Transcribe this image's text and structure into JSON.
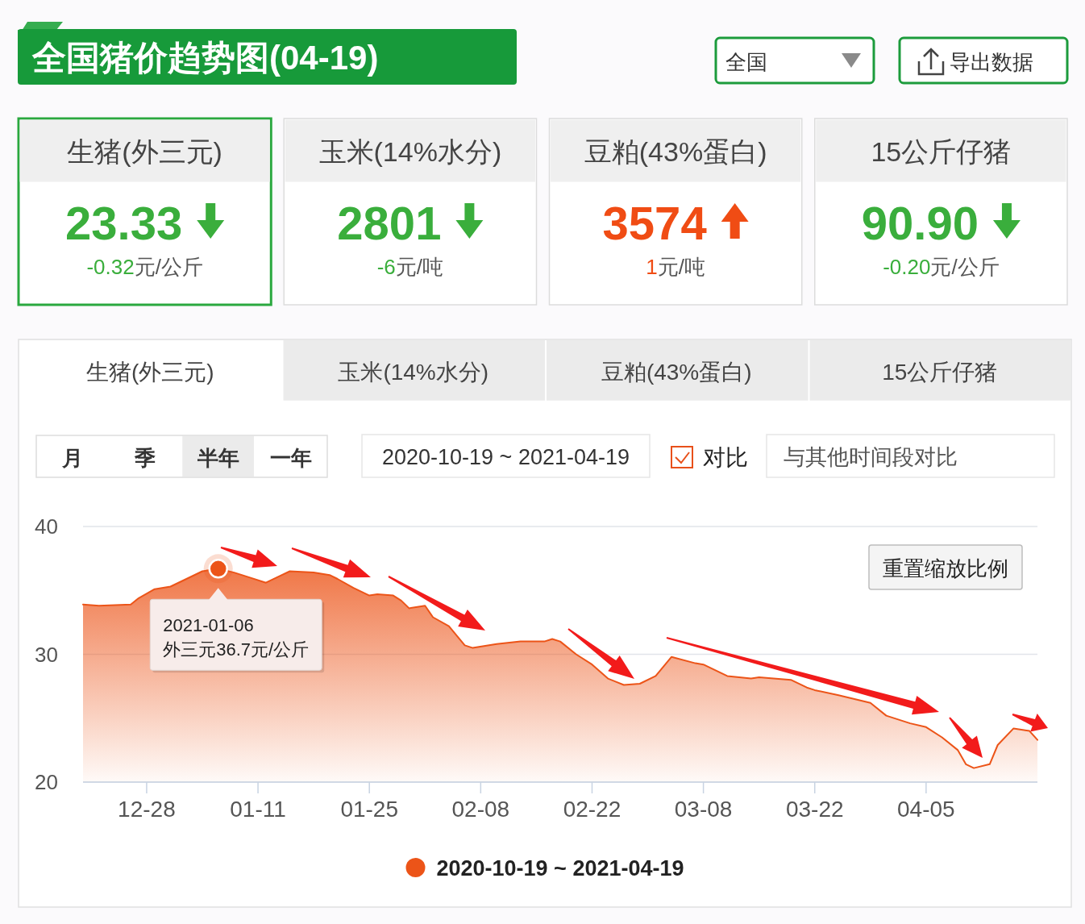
{
  "chart_data": [
    {
      "type": "other",
      "title": "全国猪价趋势图(04-19)",
      "annotations": [
        "全国",
        "导出数据"
      ]
    },
    {
      "type": "other",
      "title": "生猪(外三元)",
      "annotations": [
        "23.33",
        "元/公斤"
      ],
      "values": [
        -0.32
      ],
      "value_labels": [
        "-0.32"
      ]
    },
    {
      "type": "other",
      "title": "玉米(14%水分)",
      "annotations": [
        "2801",
        "元/吨"
      ],
      "values": [
        -6
      ],
      "value_labels": [
        "-6"
      ]
    },
    {
      "type": "other",
      "title": "豆粕(43%蛋白)",
      "annotations": [
        "3574",
        "元/吨"
      ],
      "values": [
        1
      ],
      "value_labels": [
        "1"
      ]
    },
    {
      "type": "other",
      "title": "15公斤仔猪",
      "annotations": [
        "90.90",
        "元/公斤"
      ],
      "values": [
        -0.2
      ],
      "value_labels": [
        "-0.20"
      ]
    },
    {
      "type": "other",
      "annotations": [
        "生猪(外三元)",
        "玉米(14%水分)",
        "豆粕(43%蛋白)",
        "15公斤仔猪",
        "月",
        "季",
        "半年",
        "一年",
        "2020-10-19 ~ 2021-04-19",
        "对比",
        "与其他时间段对比"
      ]
    },
    {
      "type": "area",
      "x": [
        "2020-12-20",
        "2020-12-22",
        "2020-12-26",
        "2020-12-27",
        "2020-12-29",
        "2020-12-31",
        "2021-01-02",
        "2021-01-04",
        "2021-01-06",
        "2021-01-08",
        "2021-01-10",
        "2021-01-12",
        "2021-01-14",
        "2021-01-15",
        "2021-01-18",
        "2021-01-20",
        "2021-01-21",
        "2021-01-23",
        "2021-01-25",
        "2021-01-26",
        "2021-01-28",
        "2021-01-29",
        "2021-01-30",
        "2021-02-01",
        "2021-02-02",
        "2021-02-04",
        "2021-02-06",
        "2021-02-07",
        "2021-02-10",
        "2021-02-13",
        "2021-02-16",
        "2021-02-17",
        "2021-02-18",
        "2021-02-20",
        "2021-02-22",
        "2021-02-24",
        "2021-02-26",
        "2021-02-28",
        "2021-03-02",
        "2021-03-04",
        "2021-03-07",
        "2021-03-08",
        "2021-03-11",
        "2021-03-14",
        "2021-03-15",
        "2021-03-19",
        "2021-03-21",
        "2021-03-22",
        "2021-03-25",
        "2021-03-29",
        "2021-03-31",
        "2021-04-03",
        "2021-04-05",
        "2021-04-07",
        "2021-04-09",
        "2021-04-10",
        "2021-04-11",
        "2021-04-13",
        "2021-04-14",
        "2021-04-16",
        "2021-04-18",
        "2021-04-19"
      ],
      "series": [
        {
          "name": "2020-10-19 ~ 2021-04-19",
          "color": "#ec5418",
          "values": [
            33.9,
            33.8,
            33.9,
            34.4,
            35.1,
            35.3,
            35.9,
            36.5,
            36.7,
            36.4,
            36.0,
            35.6,
            36.2,
            36.5,
            36.4,
            36.2,
            35.9,
            35.2,
            34.6,
            34.7,
            34.6,
            34.2,
            33.6,
            33.8,
            32.9,
            32.2,
            30.7,
            30.5,
            30.8,
            31.0,
            31.0,
            31.2,
            31.0,
            30.0,
            29.2,
            28.1,
            27.6,
            27.7,
            28.3,
            29.8,
            29.3,
            29.2,
            28.3,
            28.1,
            28.2,
            28.0,
            27.4,
            27.2,
            26.8,
            26.2,
            25.2,
            24.6,
            24.3,
            23.5,
            22.5,
            21.4,
            21.1,
            21.4,
            22.9,
            24.2,
            24.0,
            23.3
          ]
        }
      ],
      "xlim": [
        "2020-12-20",
        "2021-04-19"
      ],
      "xticks": [
        {
          "value": "2020-12-28",
          "label": "12-28"
        },
        {
          "value": "2021-01-11",
          "label": "01-11"
        },
        {
          "value": "2021-01-25",
          "label": "01-25"
        },
        {
          "value": "2021-02-08",
          "label": "02-08"
        },
        {
          "value": "2021-02-22",
          "label": "02-22"
        },
        {
          "value": "2021-03-08",
          "label": "03-08"
        },
        {
          "value": "2021-03-22",
          "label": "03-22"
        },
        {
          "value": "2021-04-05",
          "label": "04-05"
        }
      ],
      "ylim": [
        20,
        40
      ],
      "yticks": [
        20,
        30,
        40
      ],
      "grid": "y",
      "legend": "bottom",
      "annotations": [
        {
          "text": "2021-01-06\n外三元36.7元/公斤",
          "x": "2021-01-06",
          "y": 36.7
        },
        "重置缩放比例"
      ]
    }
  ]
}
